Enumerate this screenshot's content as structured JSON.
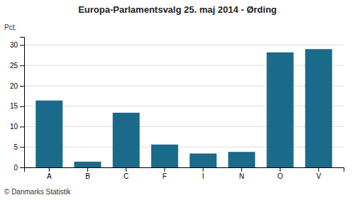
{
  "chart_data": {
    "type": "bar",
    "title": "Europa-Parlamentsvalg 25. maj 2014 - Ørding",
    "categories": [
      "A",
      "B",
      "C",
      "F",
      "I",
      "N",
      "O",
      "V"
    ],
    "values": [
      16.4,
      1.4,
      13.4,
      5.6,
      3.4,
      3.8,
      28.2,
      29.0
    ],
    "color": "#1a6a8a",
    "ylabel": "Pct.",
    "ylim": [
      0,
      32
    ],
    "yticks": [
      0,
      5,
      10,
      15,
      20,
      25,
      30
    ],
    "grid": true,
    "footer": "© Danmarks Statistik"
  }
}
